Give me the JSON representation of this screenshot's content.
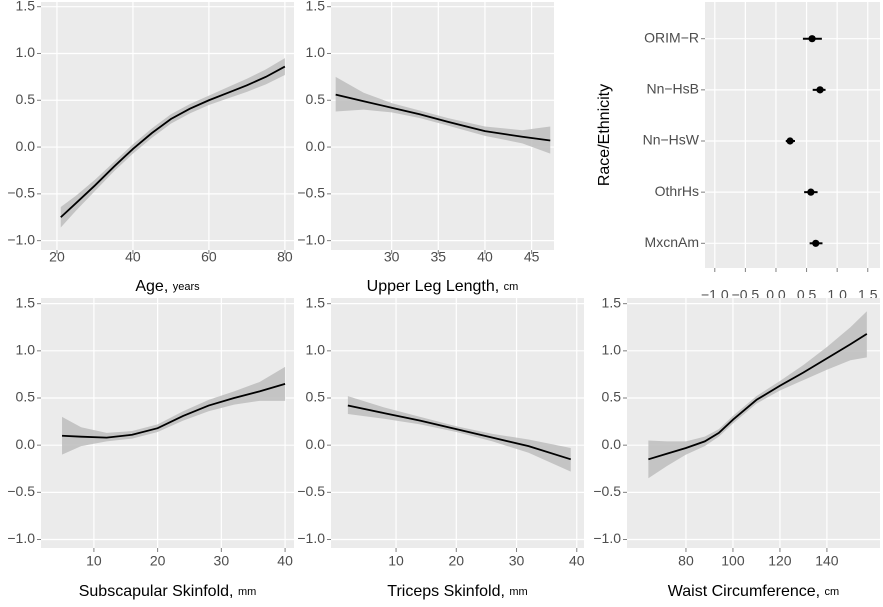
{
  "chart_data": [
    {
      "type": "line",
      "xlabel": "Age,",
      "xlabel_unit": "years",
      "x": [
        21,
        25,
        30,
        35,
        40,
        45,
        50,
        55,
        60,
        65,
        70,
        75,
        80
      ],
      "values": [
        -0.75,
        -0.6,
        -0.41,
        -0.21,
        -0.02,
        0.15,
        0.3,
        0.41,
        0.5,
        0.58,
        0.66,
        0.75,
        0.86
      ],
      "lower": [
        -0.86,
        -0.68,
        -0.47,
        -0.26,
        -0.07,
        0.1,
        0.25,
        0.36,
        0.45,
        0.52,
        0.59,
        0.67,
        0.77
      ],
      "upper": [
        -0.64,
        -0.52,
        -0.35,
        -0.16,
        0.03,
        0.2,
        0.35,
        0.46,
        0.55,
        0.64,
        0.73,
        0.83,
        0.95
      ],
      "xlim": [
        15.8,
        82.4
      ],
      "xticks": [
        20,
        40,
        60,
        80
      ],
      "ylim": [
        -1.1,
        1.55
      ],
      "yticks": [
        {
          "value": -1,
          "label": "−1.0"
        },
        {
          "value": -0.5,
          "label": "−0.5"
        },
        {
          "value": 0,
          "label": "0.0"
        },
        0.5,
        {
          "value": 1,
          "label": "1.0"
        },
        1.5
      ],
      "grid": true,
      "color": "#000000",
      "band_color": "#bdbdbd"
    },
    {
      "type": "line",
      "xlabel": "Upper Leg Length,",
      "xlabel_unit": "cm",
      "x": [
        24,
        27,
        30,
        33,
        36,
        40,
        44,
        47
      ],
      "values": [
        0.56,
        0.49,
        0.42,
        0.35,
        0.27,
        0.17,
        0.11,
        0.07
      ],
      "lower": [
        0.38,
        0.4,
        0.37,
        0.31,
        0.23,
        0.12,
        0.04,
        -0.07
      ],
      "upper": [
        0.75,
        0.58,
        0.47,
        0.39,
        0.31,
        0.22,
        0.18,
        0.22
      ],
      "xlim": [
        23.5,
        47.4
      ],
      "xticks": [
        30,
        35,
        40,
        45
      ],
      "ylim": [
        -1.1,
        1.55
      ],
      "yticks": [
        {
          "value": -1,
          "label": "−1.0"
        },
        {
          "value": -0.5,
          "label": "−0.5"
        },
        {
          "value": 0,
          "label": "0.0"
        },
        0.5,
        {
          "value": 1,
          "label": "1.0"
        },
        1.5
      ],
      "grid": true,
      "color": "#000000",
      "band_color": "#bdbdbd"
    },
    {
      "type": "dot",
      "ylabel": "Race/Ethnicity",
      "categories": [
        "ORIM−R",
        "Nn−HsB",
        "Nn−HsW",
        "OthrHs",
        "MxcnAm"
      ],
      "values": [
        0.59,
        0.72,
        0.23,
        0.57,
        0.65
      ],
      "lower": [
        0.44,
        0.6,
        0.16,
        0.46,
        0.55
      ],
      "upper": [
        0.75,
        0.81,
        0.31,
        0.68,
        0.76
      ],
      "xlim": [
        -1.16,
        1.7
      ],
      "xticks": [
        {
          "value": -1,
          "label": "−1.0"
        },
        {
          "value": -0.5,
          "label": "−0.5"
        },
        {
          "value": 0,
          "label": "0.0"
        },
        0.5,
        {
          "value": 1,
          "label": "1.0"
        },
        1.5
      ],
      "grid": true,
      "color": "#000000"
    },
    {
      "type": "line",
      "xlabel": "Subscapular Skinfold,",
      "xlabel_unit": "mm",
      "x": [
        5,
        8,
        12,
        16,
        20,
        24,
        28,
        32,
        36,
        40
      ],
      "values": [
        0.1,
        0.09,
        0.08,
        0.11,
        0.18,
        0.31,
        0.42,
        0.5,
        0.57,
        0.65
      ],
      "lower": [
        -0.1,
        -0.01,
        0.04,
        0.07,
        0.14,
        0.26,
        0.36,
        0.43,
        0.47,
        0.47
      ],
      "upper": [
        0.3,
        0.19,
        0.13,
        0.15,
        0.22,
        0.36,
        0.48,
        0.57,
        0.67,
        0.83
      ],
      "xlim": [
        1.7,
        41.4
      ],
      "xticks": [
        10,
        20,
        30,
        40
      ],
      "ylim": [
        -1.09,
        1.56
      ],
      "yticks": [
        {
          "value": -1,
          "label": "−1.0"
        },
        {
          "value": -0.5,
          "label": "−0.5"
        },
        {
          "value": 0,
          "label": "0.0"
        },
        0.5,
        {
          "value": 1,
          "label": "1.0"
        },
        1.5
      ],
      "grid": true,
      "color": "#000000",
      "band_color": "#bdbdbd"
    },
    {
      "type": "line",
      "xlabel": "Triceps Skinfold,",
      "xlabel_unit": "mm",
      "x": [
        2,
        8,
        14,
        20,
        26,
        32,
        39
      ],
      "values": [
        0.42,
        0.34,
        0.26,
        0.17,
        0.08,
        -0.01,
        -0.15
      ],
      "lower": [
        0.33,
        0.28,
        0.22,
        0.14,
        0.04,
        -0.08,
        -0.28
      ],
      "upper": [
        0.52,
        0.4,
        0.3,
        0.2,
        0.12,
        0.06,
        -0.03
      ],
      "xlim": [
        -0.8,
        41.2
      ],
      "xticks": [
        10,
        20,
        30,
        40
      ],
      "ylim": [
        -1.09,
        1.56
      ],
      "yticks": [
        {
          "value": -1,
          "label": "−1.0"
        },
        {
          "value": -0.5,
          "label": "−0.5"
        },
        {
          "value": 0,
          "label": "0.0"
        },
        0.5,
        {
          "value": 1,
          "label": "1.0"
        },
        1.5
      ],
      "grid": true,
      "color": "#000000",
      "band_color": "#bdbdbd"
    },
    {
      "type": "line",
      "xlabel": "Waist Circumference,",
      "xlabel_unit": "cm",
      "x": [
        64,
        72,
        80,
        88,
        94,
        100,
        110,
        120,
        130,
        140,
        150,
        157
      ],
      "values": [
        -0.15,
        -0.09,
        -0.03,
        0.04,
        0.13,
        0.27,
        0.48,
        0.63,
        0.77,
        0.92,
        1.07,
        1.18
      ],
      "lower": [
        -0.35,
        -0.22,
        -0.1,
        -0.01,
        0.09,
        0.23,
        0.44,
        0.58,
        0.69,
        0.8,
        0.9,
        0.93
      ],
      "upper": [
        0.05,
        0.04,
        0.04,
        0.09,
        0.17,
        0.31,
        0.52,
        0.68,
        0.85,
        1.04,
        1.25,
        1.42
      ],
      "xlim": [
        54.9,
        162.6
      ],
      "xticks": [
        80,
        100,
        120,
        140
      ],
      "ylim": [
        -1.09,
        1.56
      ],
      "yticks": [
        {
          "value": -1,
          "label": "−1.0"
        },
        {
          "value": -0.5,
          "label": "−0.5"
        },
        {
          "value": 0,
          "label": "0.0"
        },
        0.5,
        {
          "value": 1,
          "label": "1.0"
        },
        1.5
      ],
      "grid": true,
      "color": "#000000",
      "band_color": "#bdbdbd"
    }
  ]
}
